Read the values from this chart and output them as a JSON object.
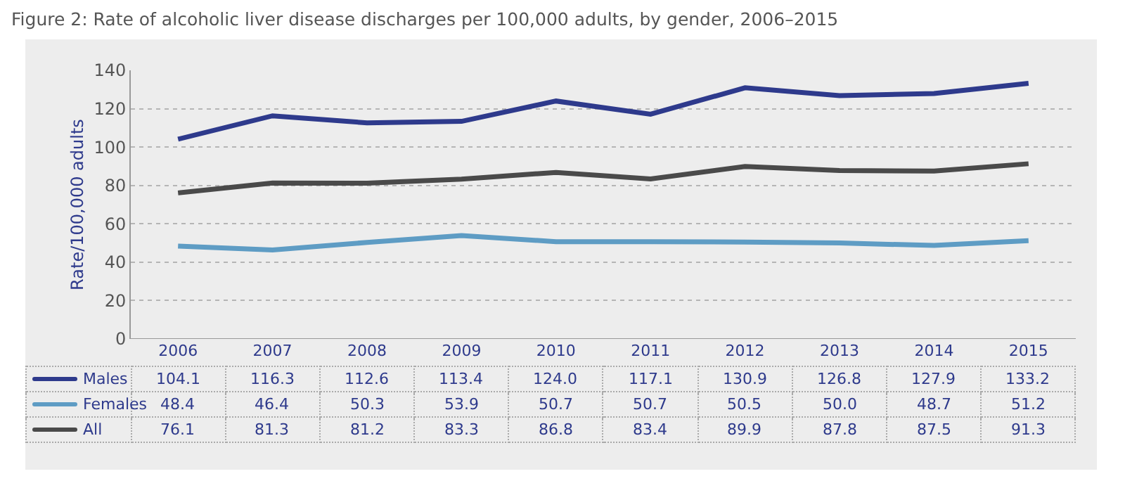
{
  "chart_data": {
    "type": "line",
    "title": "Figure 2: Rate of alcoholic liver disease discharges per 100,000 adults, by gender, 2006–2015",
    "ylabel": "Rate/100,000 adults",
    "categories": [
      "2006",
      "2007",
      "2008",
      "2009",
      "2010",
      "2011",
      "2012",
      "2013",
      "2014",
      "2015"
    ],
    "series": [
      {
        "name": "Males",
        "color": "#2e3a8c",
        "values": [
          104.1,
          116.3,
          112.6,
          113.4,
          124.0,
          117.1,
          130.9,
          126.8,
          127.9,
          133.2
        ],
        "value_labels": [
          "104.1",
          "116.3",
          "112.6",
          "113.4",
          "124.0",
          "117.1",
          "130.9",
          "126.8",
          "127.9",
          "133.2"
        ]
      },
      {
        "name": "Females",
        "color": "#5e9cc4",
        "values": [
          48.4,
          46.4,
          50.3,
          53.9,
          50.7,
          50.7,
          50.5,
          50.0,
          48.7,
          51.2
        ],
        "value_labels": [
          "48.4",
          "46.4",
          "50.3",
          "53.9",
          "50.7",
          "50.7",
          "50.5",
          "50.0",
          "48.7",
          "51.2"
        ]
      },
      {
        "name": "All",
        "color": "#4a4a4a",
        "values": [
          76.1,
          81.3,
          81.2,
          83.3,
          86.8,
          83.4,
          89.9,
          87.8,
          87.5,
          91.3
        ],
        "value_labels": [
          "76.1",
          "81.3",
          "81.2",
          "83.3",
          "86.8",
          "83.4",
          "89.9",
          "87.8",
          "87.5",
          "91.3"
        ]
      }
    ],
    "ylim": [
      0,
      140
    ],
    "yticks": [
      0,
      20,
      40,
      60,
      80,
      100,
      120,
      140
    ],
    "grid": "y",
    "legend": "bottom",
    "line_style": "solid",
    "marker": "none"
  }
}
